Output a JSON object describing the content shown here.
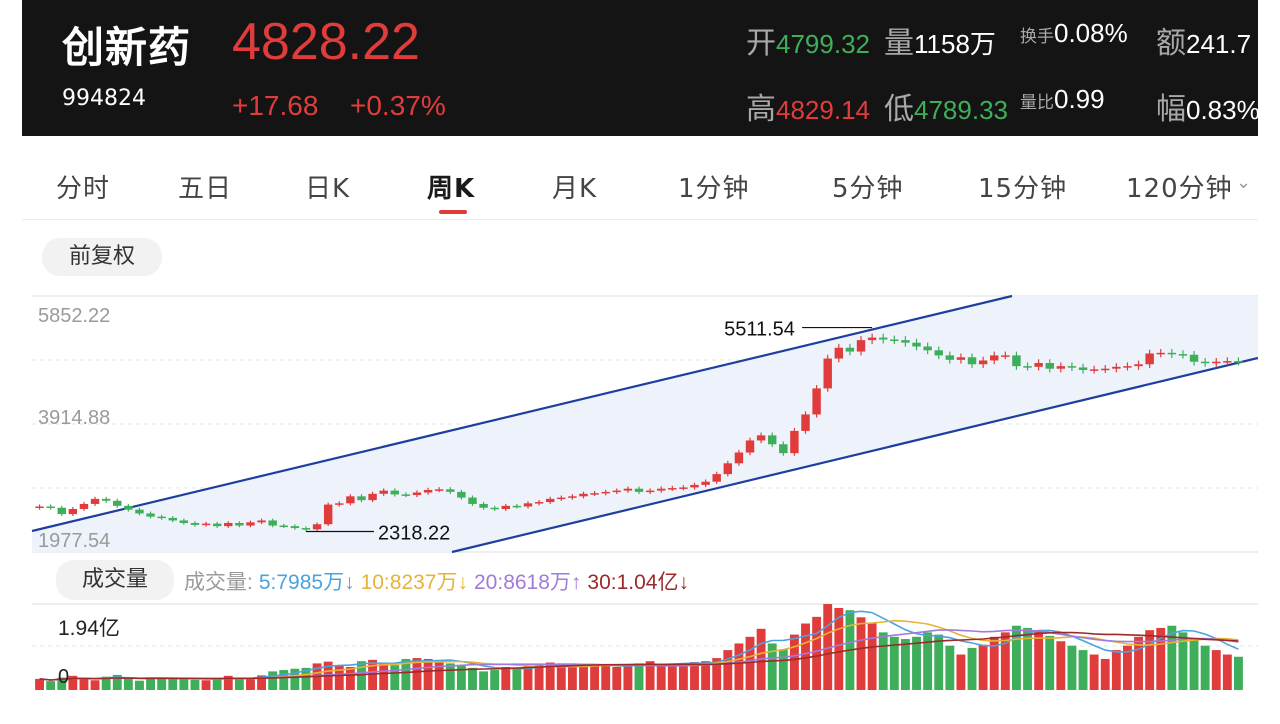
{
  "header": {
    "name": "创新药",
    "code": "994824",
    "price": "4828.22",
    "change": "+17.68",
    "change_pct": "+0.37%",
    "open_label": "开",
    "open": "4799.32",
    "volume_label": "量",
    "volume": "1158万",
    "turnover_label": "换手",
    "turnover": "0.08%",
    "amount_label": "额",
    "amount": "241.7",
    "high_label": "高",
    "high": "4829.14",
    "low_label": "低",
    "low": "4789.33",
    "vol_ratio_label": "量比",
    "vol_ratio": "0.99",
    "amplitude_label": "幅",
    "amplitude": "0.83%"
  },
  "tabs": [
    "分时",
    "五日",
    "日K",
    "周K",
    "月K",
    "1分钟",
    "5分钟",
    "15分钟",
    "120分钟"
  ],
  "active_tab": "周K",
  "adjust_label": "前复权",
  "volume_panel": {
    "title": "成交量",
    "legend_prefix": "成交量:",
    "ma5": "5:7985万↓",
    "ma10": "10:8237万↓",
    "ma20": "20:8618万↑",
    "ma30": "30:1.04亿↓",
    "max_label": "1.94亿",
    "zero_label": "0"
  },
  "colors": {
    "up": "#e03c3c",
    "down": "#3fae5a",
    "channel": "#1f3f9e",
    "channel_fill": "#eef3fb",
    "ma5": "#4aa3df",
    "ma10": "#e8b13a",
    "ma20": "#a07bdc",
    "ma30": "#9c2a2a"
  },
  "chart_data": {
    "type": "candlestick",
    "period": "weekly",
    "y_ticks": [
      "5852.22",
      "3914.88",
      "1977.54"
    ],
    "ylim": [
      1977.54,
      5852.22
    ],
    "annotations": {
      "high": "5511.54",
      "low": "2318.22"
    },
    "close": [
      2600,
      2580,
      2480,
      2560,
      2640,
      2720,
      2690,
      2610,
      2550,
      2490,
      2440,
      2420,
      2380,
      2340,
      2310,
      2330,
      2290,
      2340,
      2300,
      2350,
      2380,
      2300,
      2290,
      2260,
      2240,
      2320,
      2630,
      2650,
      2760,
      2700,
      2800,
      2850,
      2790,
      2780,
      2820,
      2860,
      2870,
      2830,
      2740,
      2640,
      2580,
      2560,
      2610,
      2600,
      2650,
      2670,
      2720,
      2740,
      2760,
      2800,
      2810,
      2830,
      2850,
      2880,
      2830,
      2850,
      2880,
      2890,
      2900,
      2940,
      2990,
      3110,
      3280,
      3450,
      3640,
      3720,
      3580,
      3440,
      3790,
      4050,
      4460,
      4930,
      5100,
      5040,
      5220,
      5260,
      5230,
      5220,
      5180,
      5120,
      5060,
      4980,
      4910,
      4950,
      4840,
      4900,
      4980,
      4980,
      4810,
      4800,
      4860,
      4770,
      4810,
      4790,
      4750,
      4760,
      4770,
      4800,
      4810,
      4840,
      5010,
      5020,
      5000,
      4990,
      4880,
      4860,
      4880,
      4890,
      4880
    ],
    "volume": [
      2.5,
      2.0,
      2.8,
      3.2,
      2.6,
      2.2,
      3.0,
      3.4,
      2.5,
      2.1,
      2.6,
      2.8,
      2.7,
      2.5,
      2.3,
      2.2,
      2.6,
      3.2,
      2.8,
      2.4,
      3.3,
      4.2,
      4.5,
      4.8,
      5.0,
      6.0,
      6.4,
      5.5,
      5.2,
      6.5,
      6.8,
      6.1,
      5.6,
      7.0,
      7.2,
      7.0,
      6.5,
      6.0,
      5.5,
      5.0,
      4.2,
      4.5,
      5.2,
      5.0,
      5.4,
      5.6,
      6.2,
      6.0,
      5.6,
      5.2,
      5.8,
      5.5,
      5.2,
      5.4,
      6.0,
      6.5,
      5.8,
      5.6,
      6.0,
      6.3,
      6.5,
      7.2,
      9.0,
      10.5,
      12.0,
      13.8,
      10.5,
      9.2,
      12.5,
      15.0,
      16.5,
      19.4,
      18.5,
      18.0,
      16.4,
      15.0,
      13.0,
      12.0,
      11.5,
      12.0,
      13.0,
      12.5,
      10.0,
      8.0,
      9.5,
      10.2,
      12.0,
      13.0,
      14.5,
      14.0,
      13.5,
      12.2,
      11.0,
      10.0,
      9.0,
      8.0,
      7.0,
      9.0,
      10.0,
      12.0,
      13.5,
      14.0,
      14.5,
      13.0,
      11.5,
      10.0,
      9.0,
      8.0,
      7.5
    ]
  }
}
